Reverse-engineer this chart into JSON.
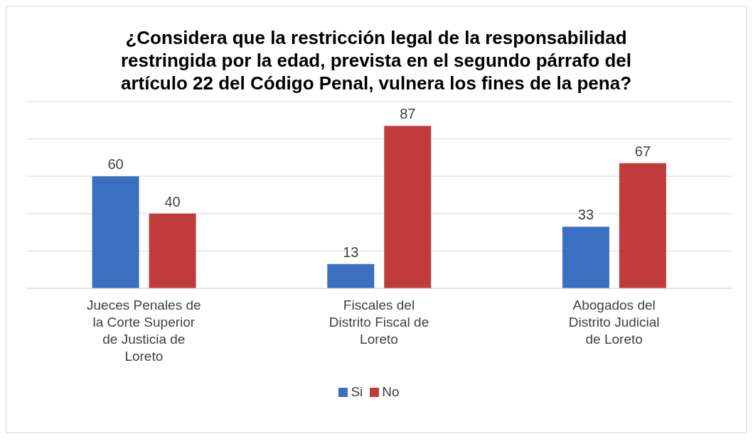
{
  "chart_data": {
    "type": "bar",
    "title": "¿Considera que la restricción legal de la responsabilidad restringida por la edad, prevista en el segundo párrafo del artículo 22 del Código Penal, vulnera los fines de la pena?",
    "categories": [
      "Jueces Penales de la Corte Superior de Justicia de Loreto",
      "Fiscales del Distrito Fiscal de Loreto",
      "Abogados del Distrito Judicial de Loreto"
    ],
    "series": [
      {
        "name": "Si",
        "color": "#3b6fc2",
        "values": [
          60,
          13,
          33
        ]
      },
      {
        "name": "No",
        "color": "#c23b3b",
        "values": [
          40,
          87,
          67
        ]
      }
    ],
    "ylim": [
      0,
      100
    ],
    "yticks": [
      {
        "value": 0,
        "label": null
      },
      {
        "value": 20,
        "label": null
      },
      {
        "value": 40,
        "label": null
      },
      {
        "value": 60,
        "label": null
      },
      {
        "value": 80,
        "label": null
      },
      {
        "value": 100,
        "label": null
      }
    ],
    "tick_labels": "x",
    "grid": "y",
    "data_labels": true,
    "legend": "bottom"
  }
}
